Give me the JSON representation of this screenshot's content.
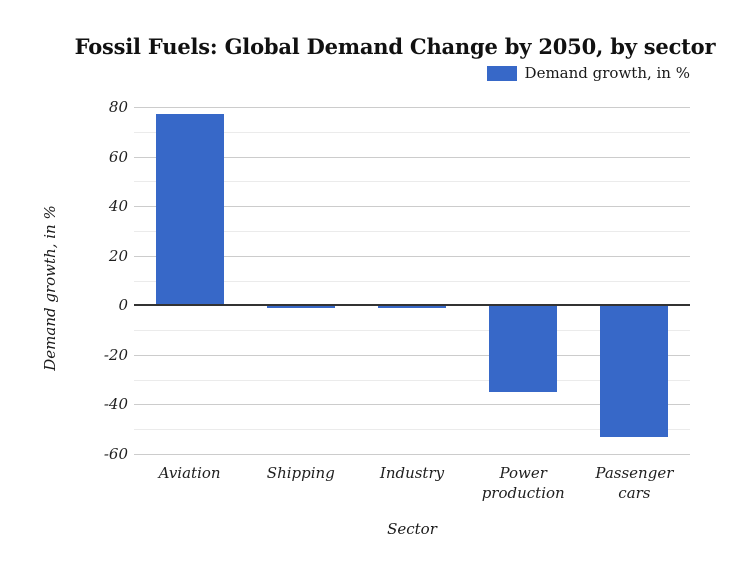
{
  "chart_data": {
    "type": "bar",
    "title": "Fossil Fuels: Global Demand Change by 2050, by sector",
    "categories": [
      "Aviation",
      "Shipping",
      "Industry",
      "Power production",
      "Passenger cars"
    ],
    "series": [
      {
        "name": "Demand growth, in %",
        "values": [
          77,
          -1,
          -1,
          -35,
          -53
        ]
      }
    ],
    "xlabel": "Sector",
    "ylabel": "Demand growth, in %",
    "ylim": [
      -60,
      80
    ],
    "yticks": [
      80,
      60,
      40,
      20,
      0,
      -20,
      -40,
      -60
    ],
    "minor_yticks": [
      70,
      50,
      30,
      10,
      -10,
      -30,
      -50
    ],
    "grid": true,
    "legend_position": "top-right",
    "colors": {
      "bar": "#3768c8",
      "major_gridline": "#cccccc",
      "minor_gridline": "#ebebeb",
      "zero_line": "#333333",
      "text": "#1a1a1a",
      "background": "#ffffff"
    }
  }
}
